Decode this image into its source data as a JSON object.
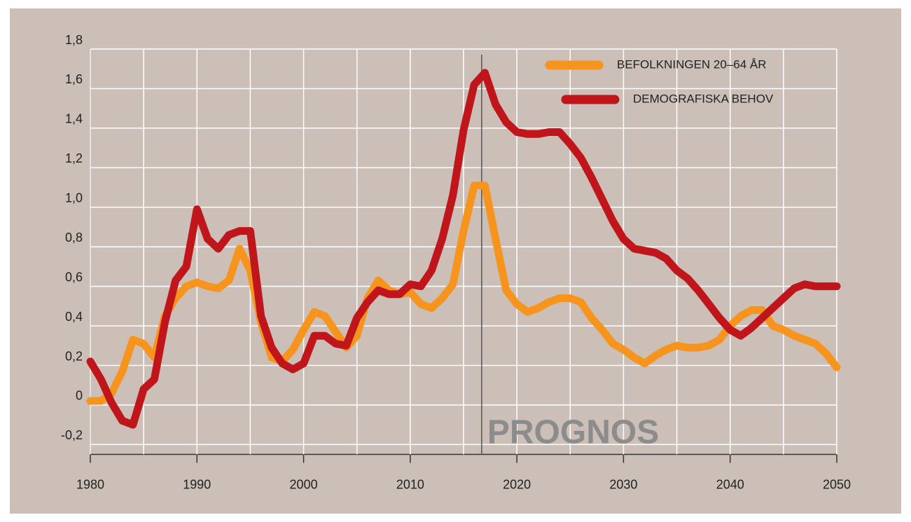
{
  "chart_data": {
    "type": "line",
    "x": [
      1980,
      1981,
      1982,
      1983,
      1984,
      1985,
      1986,
      1987,
      1988,
      1989,
      1990,
      1991,
      1992,
      1993,
      1994,
      1995,
      1996,
      1997,
      1998,
      1999,
      2000,
      2001,
      2002,
      2003,
      2004,
      2005,
      2006,
      2007,
      2008,
      2009,
      2010,
      2011,
      2012,
      2013,
      2014,
      2015,
      2016,
      2017,
      2018,
      2019,
      2020,
      2021,
      2022,
      2023,
      2024,
      2025,
      2026,
      2027,
      2028,
      2029,
      2030,
      2031,
      2032,
      2033,
      2034,
      2035,
      2036,
      2037,
      2038,
      2039,
      2040,
      2041,
      2042,
      2043,
      2044,
      2045,
      2046,
      2047,
      2048,
      2049,
      2050
    ],
    "series": [
      {
        "name": "BEFOLKNINGEN 20–64 ÅR",
        "color": "#f7941d",
        "values": [
          0.02,
          0.02,
          0.06,
          0.17,
          0.33,
          0.31,
          0.24,
          0.45,
          0.54,
          0.6,
          0.62,
          0.6,
          0.59,
          0.63,
          0.79,
          0.68,
          0.42,
          0.24,
          0.22,
          0.28,
          0.38,
          0.47,
          0.45,
          0.37,
          0.29,
          0.35,
          0.54,
          0.63,
          0.58,
          0.56,
          0.57,
          0.51,
          0.49,
          0.54,
          0.61,
          0.88,
          1.11,
          1.11,
          0.84,
          0.58,
          0.51,
          0.47,
          0.49,
          0.52,
          0.54,
          0.54,
          0.52,
          0.44,
          0.38,
          0.31,
          0.28,
          0.24,
          0.21,
          0.25,
          0.28,
          0.3,
          0.29,
          0.29,
          0.3,
          0.33,
          0.4,
          0.45,
          0.48,
          0.48,
          0.4,
          0.38,
          0.35,
          0.33,
          0.31,
          0.26,
          0.19
        ]
      },
      {
        "name": "DEMOGRAFISKA BEHOV",
        "color": "#c0161b",
        "values": [
          0.22,
          0.13,
          0.01,
          -0.08,
          -0.1,
          0.08,
          0.13,
          0.42,
          0.63,
          0.7,
          0.99,
          0.84,
          0.79,
          0.86,
          0.88,
          0.88,
          0.45,
          0.29,
          0.21,
          0.18,
          0.21,
          0.35,
          0.35,
          0.31,
          0.3,
          0.44,
          0.52,
          0.58,
          0.56,
          0.56,
          0.61,
          0.6,
          0.68,
          0.84,
          1.06,
          1.39,
          1.62,
          1.68,
          1.52,
          1.43,
          1.38,
          1.37,
          1.37,
          1.38,
          1.38,
          1.32,
          1.25,
          1.15,
          1.04,
          0.93,
          0.84,
          0.79,
          0.78,
          0.77,
          0.74,
          0.68,
          0.64,
          0.58,
          0.51,
          0.44,
          0.38,
          0.35,
          0.39,
          0.44,
          0.49,
          0.54,
          0.59,
          0.61,
          0.6,
          0.6,
          0.6
        ]
      }
    ],
    "xlim": [
      1980,
      2050
    ],
    "xticks": [
      1980,
      1990,
      2000,
      2010,
      2020,
      2030,
      2040,
      2050
    ],
    "x_gridlines": [
      1985,
      1990,
      1995,
      2000,
      2005,
      2010,
      2015,
      2020,
      2025,
      2030,
      2035,
      2040,
      2045,
      2050
    ],
    "ylim": [
      -0.25,
      1.8
    ],
    "yticks": [
      {
        "value": -0.2,
        "label": "-0,2"
      },
      0,
      {
        "value": 0.2,
        "label": "0,2"
      },
      {
        "value": 0.4,
        "label": "0,4"
      },
      {
        "value": 0.6,
        "label": "0,6"
      },
      {
        "value": 0.8,
        "label": "0,8"
      },
      {
        "value": 1.0,
        "label": "1,0"
      },
      {
        "value": 1.2,
        "label": "1,2"
      },
      {
        "value": 1.4,
        "label": "1,4"
      },
      {
        "value": 1.6,
        "label": "1,6"
      },
      {
        "value": 1.8,
        "label": "1,8"
      }
    ],
    "grid": true,
    "legend": "top-right",
    "annotation": {
      "text": "PROGNOS",
      "x": 2016.7
    }
  }
}
